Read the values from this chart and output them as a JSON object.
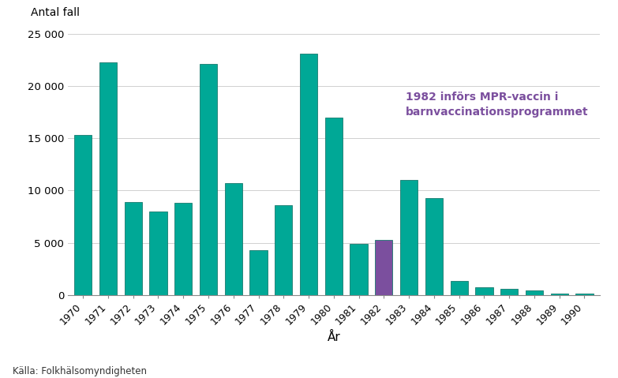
{
  "years": [
    1970,
    1971,
    1972,
    1973,
    1974,
    1975,
    1976,
    1977,
    1978,
    1979,
    1980,
    1981,
    1982,
    1983,
    1984,
    1985,
    1986,
    1987,
    1988,
    1989,
    1990
  ],
  "values": [
    15300,
    22300,
    8900,
    8000,
    8800,
    22100,
    10750,
    4300,
    8600,
    23100,
    17000,
    4900,
    5300,
    11000,
    9300,
    1300,
    750,
    550,
    400,
    100,
    100
  ],
  "bar_colors": [
    "#00A896",
    "#00A896",
    "#00A896",
    "#00A896",
    "#00A896",
    "#00A896",
    "#00A896",
    "#00A896",
    "#00A896",
    "#00A896",
    "#00A896",
    "#00A896",
    "#7B4F9E",
    "#00A896",
    "#00A896",
    "#00A896",
    "#00A896",
    "#00A896",
    "#00A896",
    "#00A896",
    "#00A896"
  ],
  "xlabel": "År",
  "ylabel": "Antal fall",
  "ylim": [
    0,
    25000
  ],
  "yticks": [
    0,
    5000,
    10000,
    15000,
    20000,
    25000
  ],
  "ytick_labels": [
    "0",
    "5 000",
    "10 000",
    "15 000",
    "20 000",
    "25 000"
  ],
  "annotation_text": "1982 införs MPR-vaccin i\nbarnvaccinationsprogrammet",
  "annotation_color": "#7B4F9E",
  "source_text": "Källa: Folkhälsomyndigheten",
  "background_color": "#ffffff",
  "grid_color": "#d0d0d0",
  "teal_color": "#00A896",
  "purple_color": "#7B4F9E",
  "bar_edge_color": "#1a7a6e",
  "bar_width": 0.7
}
